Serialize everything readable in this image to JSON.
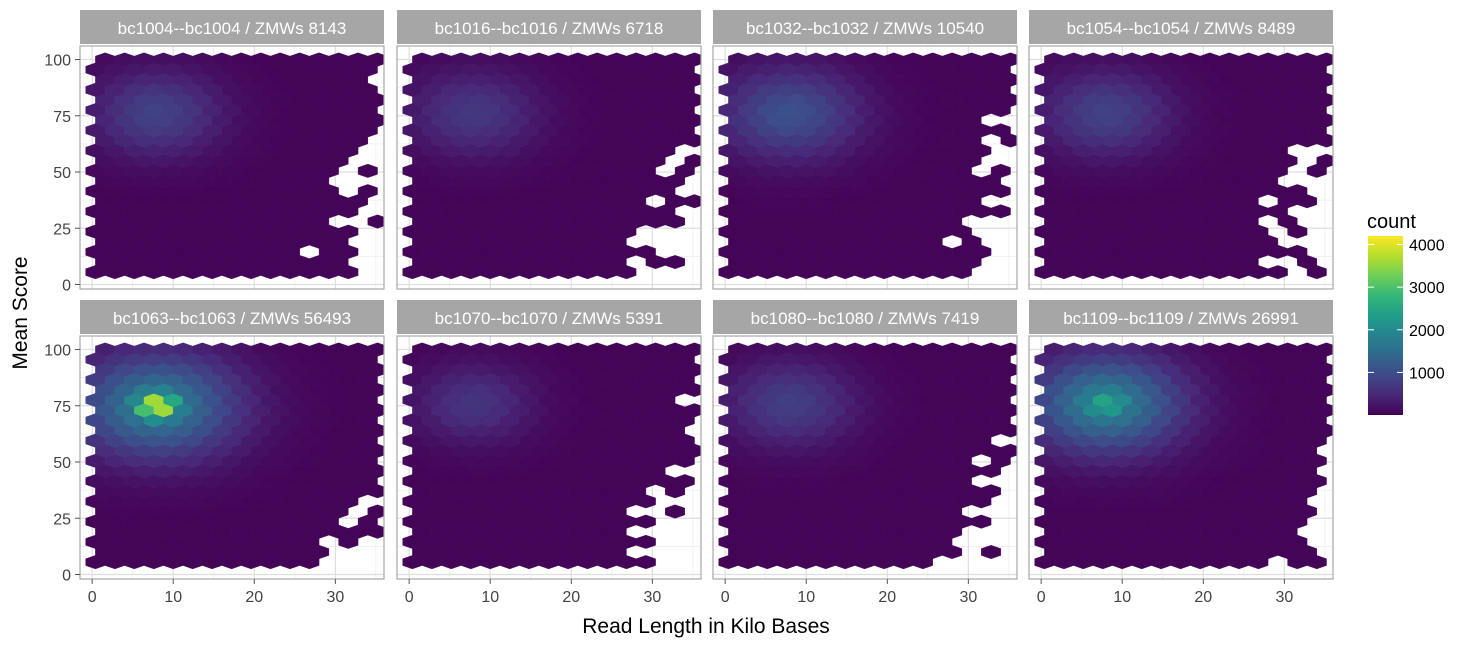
{
  "chart_data": {
    "type": "heatmap",
    "subtype": "hexbin",
    "xlabel": "Read Length in Kilo Bases",
    "ylabel": "Mean Score",
    "xlim": [
      -1.5,
      36
    ],
    "ylim": [
      -2,
      106
    ],
    "x_ticks": [
      0,
      10,
      20,
      30
    ],
    "y_ticks": [
      0,
      25,
      50,
      75,
      100
    ],
    "grid": true,
    "legend": {
      "title": "count",
      "position": "right",
      "ticks": [
        1000,
        2000,
        3000,
        4000
      ],
      "range": [
        1,
        4200
      ],
      "colors": [
        "#440154",
        "#3b528b",
        "#21918c",
        "#5ec962",
        "#fde725"
      ]
    },
    "panels": [
      {
        "label": "bc1004--bc1004 / ZMWs 8143",
        "zmws": 8143,
        "peak_count": 800,
        "peak_x": 8,
        "peak_y": 76,
        "hot_core": 0.0,
        "spread_x": 5.5,
        "spread_y": 13
      },
      {
        "label": "bc1016--bc1016 / ZMWs 6718",
        "zmws": 6718,
        "peak_count": 650,
        "peak_x": 8,
        "peak_y": 76,
        "hot_core": 0.0,
        "spread_x": 5.5,
        "spread_y": 13
      },
      {
        "label": "bc1032--bc1032 / ZMWs 10540",
        "zmws": 10540,
        "peak_count": 1000,
        "peak_x": 8,
        "peak_y": 76,
        "hot_core": 0.0,
        "spread_x": 6,
        "spread_y": 14
      },
      {
        "label": "bc1054--bc1054 / ZMWs 8489",
        "zmws": 8489,
        "peak_count": 800,
        "peak_x": 8,
        "peak_y": 76,
        "hot_core": 0.0,
        "spread_x": 5.5,
        "spread_y": 13
      },
      {
        "label": "bc1063--bc1063 / ZMWs 56493",
        "zmws": 56493,
        "peak_count": 4200,
        "peak_x": 8,
        "peak_y": 75,
        "hot_core": 0.6,
        "spread_x": 7,
        "spread_y": 16
      },
      {
        "label": "bc1070--bc1070 / ZMWs 5391",
        "zmws": 5391,
        "peak_count": 600,
        "peak_x": 8,
        "peak_y": 76,
        "hot_core": 0.0,
        "spread_x": 5,
        "spread_y": 12
      },
      {
        "label": "bc1080--bc1080 / ZMWs 7419",
        "zmws": 7419,
        "peak_count": 750,
        "peak_x": 8,
        "peak_y": 76,
        "hot_core": 0.0,
        "spread_x": 5.5,
        "spread_y": 13
      },
      {
        "label": "bc1109--bc1109 / ZMWs 26991",
        "zmws": 26991,
        "peak_count": 2500,
        "peak_x": 8,
        "peak_y": 76,
        "hot_core": 0.3,
        "spread_x": 6.5,
        "spread_y": 15
      }
    ]
  }
}
